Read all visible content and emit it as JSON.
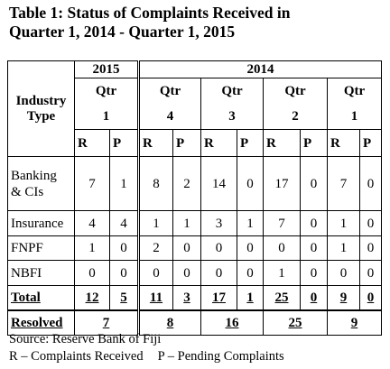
{
  "title": {
    "line1": "Table 1: Status of Complaints Received in",
    "line2": "Quarter 1, 2014 - Quarter 1, 2015"
  },
  "header": {
    "industry_type": "Industry Type",
    "years": [
      "2015",
      "2014"
    ],
    "qtr_label": "Qtr",
    "quarters": [
      "1",
      "4",
      "3",
      "2",
      "1"
    ],
    "sub": [
      "R",
      "P",
      "R",
      "P",
      "R",
      "P",
      "R",
      "P",
      "R",
      "P"
    ]
  },
  "rows": [
    {
      "label_lines": [
        "Banking",
        "& CIs"
      ],
      "values": [
        "7",
        "1",
        "8",
        "2",
        "14",
        "0",
        "17",
        "0",
        "7",
        "0"
      ]
    },
    {
      "label_lines": [
        "Insurance"
      ],
      "values": [
        "4",
        "4",
        "1",
        "1",
        "3",
        "1",
        "7",
        "0",
        "1",
        "0"
      ]
    },
    {
      "label_lines": [
        "FNPF"
      ],
      "values": [
        "1",
        "0",
        "2",
        "0",
        "0",
        "0",
        "0",
        "0",
        "1",
        "0"
      ]
    },
    {
      "label_lines": [
        "NBFI"
      ],
      "values": [
        "0",
        "0",
        "0",
        "0",
        "0",
        "0",
        "1",
        "0",
        "0",
        "0"
      ]
    }
  ],
  "total": {
    "label": "Total",
    "values": [
      "12",
      "5",
      "11",
      "3",
      "17",
      "1",
      "25",
      "0",
      "9",
      "0"
    ]
  },
  "resolved": {
    "label": "Resolved",
    "values": [
      "7",
      "8",
      "16",
      "25",
      "9"
    ]
  },
  "notes": {
    "source": "Source: Reserve Bank of Fiji",
    "legend_r": "R – Complaints Received",
    "legend_p": "P – Pending Complaints"
  }
}
